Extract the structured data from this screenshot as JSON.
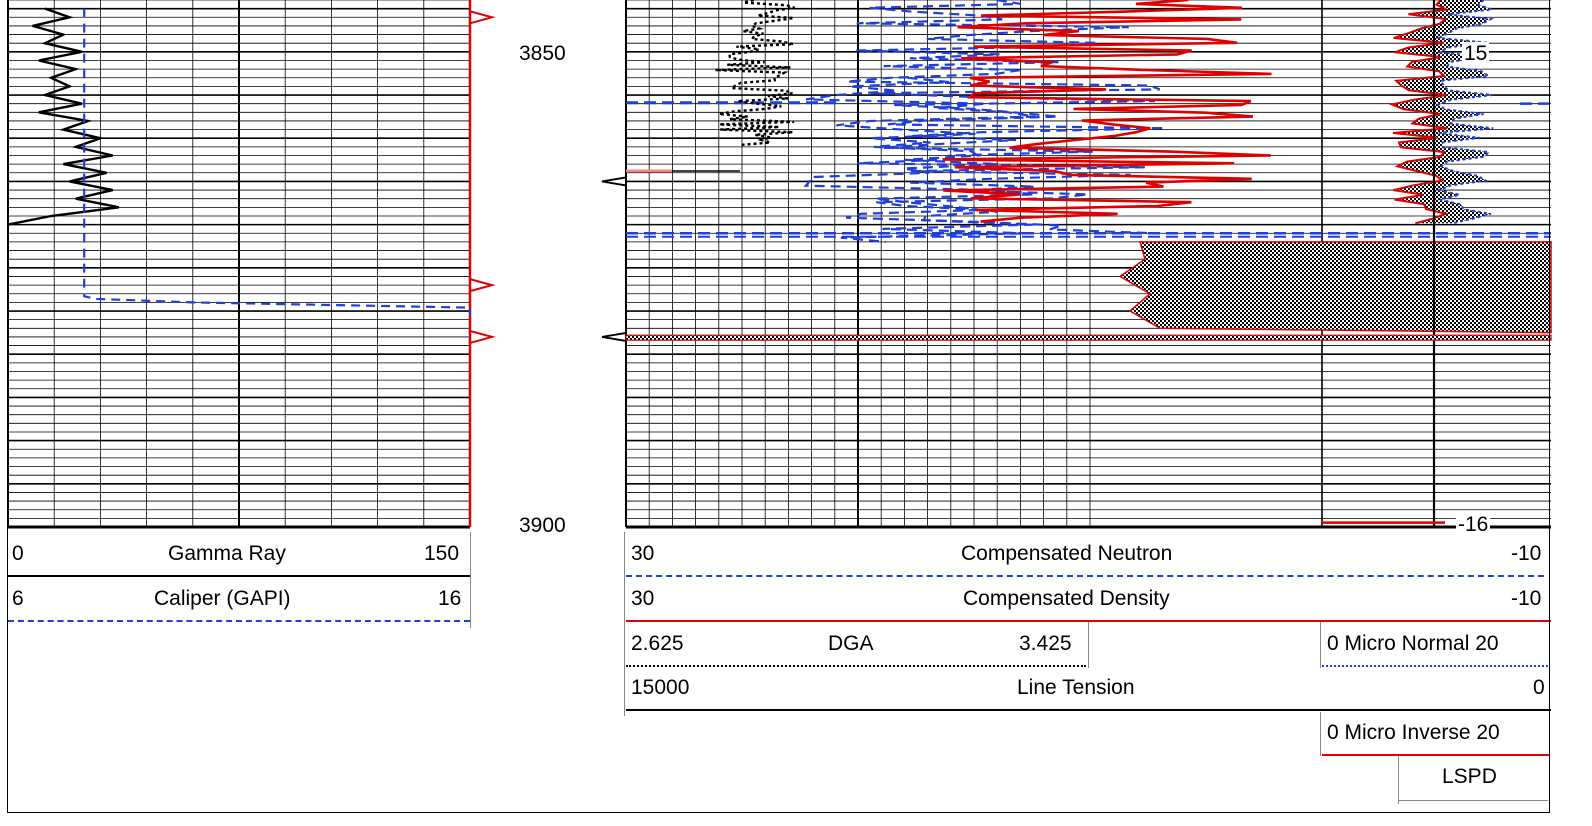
{
  "chart_data": [
    {
      "type": "line",
      "track": "left",
      "depth_labels": [
        "3850",
        "3900"
      ],
      "series": [
        {
          "name": "Gamma Ray",
          "scale": [
            0,
            150
          ],
          "color": "#000000",
          "style": "solid",
          "y": [
            3840,
            3841,
            3842,
            3843,
            3844,
            3845,
            3846,
            3847,
            3848,
            3849,
            3850,
            3851,
            3852,
            3853,
            3854,
            3855,
            3856,
            3857,
            3858,
            3859,
            3860,
            3861,
            3862,
            3863,
            3864,
            3865
          ],
          "x": [
            12,
            20,
            8,
            18,
            12,
            24,
            10,
            22,
            14,
            20,
            12,
            24,
            10,
            26,
            18,
            30,
            22,
            34,
            18,
            32,
            20,
            34,
            22,
            36,
            14,
            0
          ]
        },
        {
          "name": "Caliper (GAPI)",
          "scale": [
            6,
            16
          ],
          "color": "#1f3fd8",
          "style": "dashed",
          "y": [
            3840,
            3873.3,
            3873.6,
            3874.0,
            3874.6,
            3875.5
          ],
          "x": [
            7.65,
            7.65,
            7.9,
            10.0,
            16.0,
            16.0
          ]
        }
      ],
      "markers_right": [
        3841,
        3872,
        3878
      ]
    },
    {
      "type": "line",
      "track": "right",
      "series": [
        {
          "name": "Compensated Neutron",
          "scale": [
            30,
            -10
          ],
          "color": "#1f3fd8",
          "style": "dashed"
        },
        {
          "name": "Compensated Density",
          "scale": [
            30,
            -10
          ],
          "color": "#e00000",
          "style": "solid"
        },
        {
          "name": "DGA",
          "scale": [
            2.625,
            3.425
          ],
          "color": "#000000",
          "style": "dotted"
        },
        {
          "name": "Line Tension",
          "scale": [
            15000,
            0
          ],
          "color": "#000000",
          "style": "solid"
        },
        {
          "name": "Micro Normal",
          "scale": [
            0,
            20
          ],
          "color": "#1f3fd8",
          "style": "dotted"
        },
        {
          "name": "Micro Inverse",
          "scale": [
            0,
            20
          ],
          "color": "#e00000",
          "style": "solid"
        }
      ],
      "inline_labels": [
        "15",
        "-16"
      ],
      "markers_left": [
        3860,
        3878
      ]
    }
  ],
  "headers": {
    "gamma": {
      "min": "0",
      "label": "Gamma Ray",
      "max": "150"
    },
    "caliper": {
      "min": "6",
      "label": "Caliper (GAPI)",
      "max": "16"
    },
    "neutron": {
      "min": "30",
      "label": "Compensated Neutron",
      "max": "-10"
    },
    "density": {
      "min": "30",
      "label": "Compensated Density",
      "max": "-10"
    },
    "dga": {
      "min": "2.625",
      "label": "DGA",
      "max": "3.425"
    },
    "tension": {
      "min": "15000",
      "label": "Line Tension",
      "max": "0"
    },
    "micro_normal": "0  Micro Normal 20",
    "micro_inverse": "0  Micro Inverse 20",
    "lspd": "LSPD"
  },
  "colors": {
    "red": "#e00000",
    "blue": "#1f3fd8",
    "black": "#000000"
  }
}
